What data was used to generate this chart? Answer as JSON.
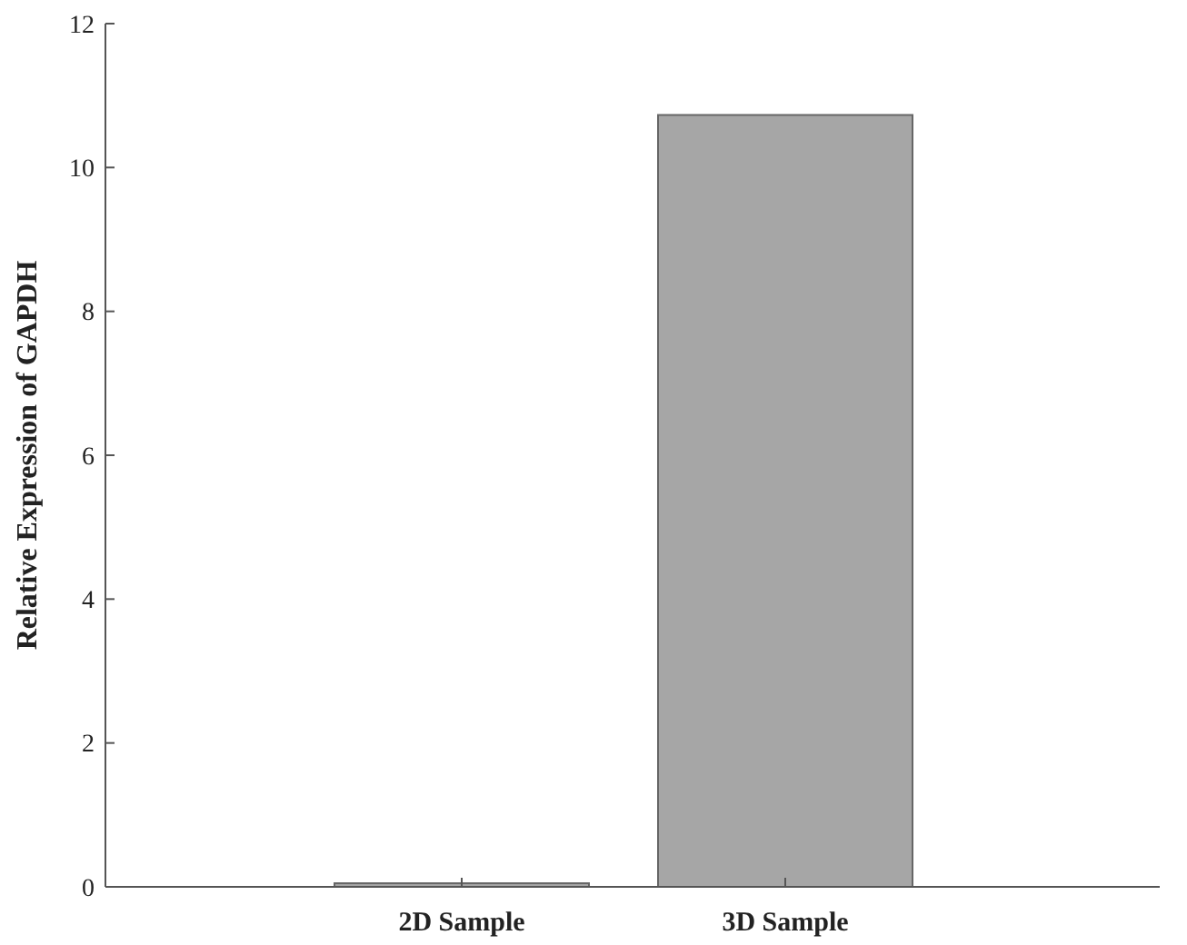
{
  "chart_data": {
    "type": "bar",
    "ylabel": "Relative Expression of GAPDH",
    "categories": [
      "2D Sample",
      "3D Sample"
    ],
    "values": [
      0.05,
      10.73
    ],
    "colors": [
      "#a6a6a6",
      "#a6a6a6"
    ],
    "ylim": [
      0,
      12
    ],
    "yticks": [
      0,
      2,
      4,
      6,
      8,
      10,
      12
    ],
    "grid": false
  }
}
